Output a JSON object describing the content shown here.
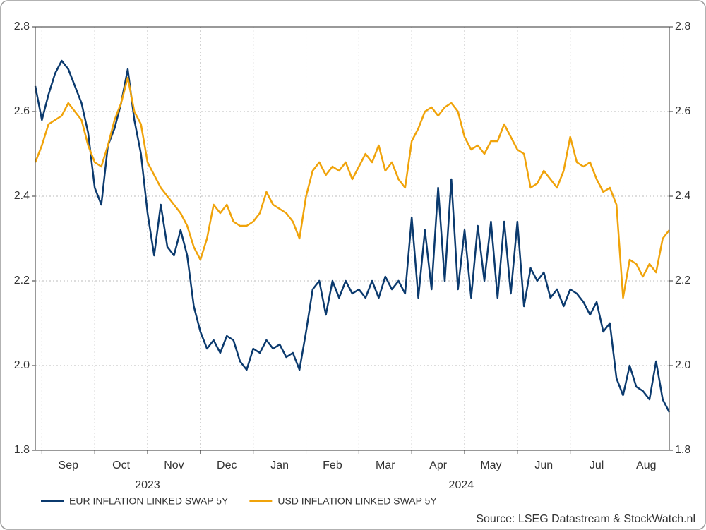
{
  "chart_data": {
    "type": "line",
    "categories": [
      null,
      "Sep",
      null,
      null,
      null,
      null,
      null,
      null,
      null,
      "Oct",
      null,
      null,
      null,
      null,
      null,
      null,
      null,
      "Nov",
      null,
      null,
      null,
      null,
      null,
      null,
      null,
      "Dec",
      null,
      null,
      null,
      null,
      null,
      null,
      null,
      "Jan",
      null,
      null,
      null,
      null,
      null,
      null,
      null,
      "Feb",
      null,
      null,
      null,
      null,
      null,
      null,
      null,
      "Mar",
      null,
      null,
      null,
      null,
      null,
      null,
      null,
      "Apr",
      null,
      null,
      null,
      null,
      null,
      null,
      null,
      "May",
      null,
      null,
      null,
      null,
      null,
      null,
      null,
      "Jun",
      null,
      null,
      null,
      null,
      null,
      null,
      null,
      "Jul",
      null,
      null,
      null,
      null,
      null,
      null,
      null,
      "Aug",
      null,
      null,
      null,
      null,
      null,
      null,
      null
    ],
    "year_categories": [
      null,
      "2023",
      null,
      null,
      null,
      null,
      null,
      null,
      null,
      null,
      null,
      null,
      null,
      null,
      null,
      null,
      null,
      null,
      null,
      null,
      null,
      null,
      null,
      null,
      null,
      null,
      null,
      null,
      null,
      null,
      null,
      null,
      null,
      "2024",
      null,
      null,
      null,
      null,
      null,
      null,
      null,
      null,
      null,
      null,
      null,
      null,
      null,
      null,
      null,
      null,
      null,
      null,
      null,
      null,
      null,
      null,
      null,
      null,
      null,
      null,
      null,
      null,
      null,
      null,
      null,
      null,
      null,
      null,
      null,
      null,
      null,
      null,
      null,
      null,
      null,
      null,
      null,
      null,
      null,
      null,
      null,
      null,
      null,
      null,
      null,
      null,
      null,
      null,
      null,
      null,
      null,
      null,
      null,
      null,
      null,
      null,
      null
    ],
    "series": [
      {
        "name": "EUR INFLATION LINKED SWAP 5Y",
        "color": "#0b3a6e",
        "values": [
          2.66,
          2.58,
          2.64,
          2.69,
          2.72,
          2.7,
          2.66,
          2.62,
          2.55,
          2.42,
          2.38,
          2.52,
          2.56,
          2.62,
          2.7,
          2.58,
          2.5,
          2.36,
          2.26,
          2.38,
          2.28,
          2.26,
          2.32,
          2.26,
          2.14,
          2.08,
          2.04,
          2.06,
          2.03,
          2.07,
          2.06,
          2.01,
          1.99,
          2.04,
          2.03,
          2.06,
          2.04,
          2.05,
          2.02,
          2.03,
          1.99,
          2.08,
          2.18,
          2.2,
          2.12,
          2.2,
          2.16,
          2.2,
          2.17,
          2.18,
          2.16,
          2.2,
          2.16,
          2.21,
          2.18,
          2.2,
          2.17,
          2.35,
          2.16,
          2.32,
          2.18,
          2.42,
          2.2,
          2.44,
          2.18,
          2.32,
          2.16,
          2.33,
          2.2,
          2.34,
          2.16,
          2.34,
          2.17,
          2.34,
          2.14,
          2.23,
          2.2,
          2.22,
          2.16,
          2.18,
          2.14,
          2.18,
          2.17,
          2.15,
          2.12,
          2.15,
          2.08,
          2.1,
          1.97,
          1.93,
          2.0,
          1.95,
          1.94,
          1.92,
          2.01,
          1.92,
          1.89
        ]
      },
      {
        "name": "USD INFLATION LINKED SWAP 5Y",
        "color": "#f0a30a",
        "values": [
          2.48,
          2.52,
          2.57,
          2.58,
          2.59,
          2.62,
          2.6,
          2.58,
          2.52,
          2.48,
          2.47,
          2.52,
          2.58,
          2.62,
          2.68,
          2.6,
          2.57,
          2.48,
          2.45,
          2.42,
          2.4,
          2.38,
          2.36,
          2.33,
          2.28,
          2.25,
          2.3,
          2.38,
          2.36,
          2.38,
          2.34,
          2.33,
          2.33,
          2.34,
          2.36,
          2.41,
          2.38,
          2.37,
          2.36,
          2.34,
          2.3,
          2.4,
          2.46,
          2.48,
          2.45,
          2.47,
          2.46,
          2.48,
          2.44,
          2.47,
          2.5,
          2.48,
          2.52,
          2.46,
          2.48,
          2.44,
          2.42,
          2.53,
          2.56,
          2.6,
          2.61,
          2.59,
          2.61,
          2.62,
          2.6,
          2.54,
          2.51,
          2.52,
          2.5,
          2.53,
          2.53,
          2.57,
          2.54,
          2.51,
          2.5,
          2.42,
          2.43,
          2.46,
          2.44,
          2.42,
          2.46,
          2.54,
          2.48,
          2.47,
          2.48,
          2.44,
          2.41,
          2.42,
          2.38,
          2.16,
          2.25,
          2.24,
          2.21,
          2.24,
          2.22,
          2.3,
          2.32
        ]
      }
    ],
    "ylim": [
      1.8,
      2.8
    ],
    "yticks": [
      1.8,
      {
        "value": 2,
        "label": "2.0"
      },
      2.2,
      2.4,
      2.6,
      2.8
    ],
    "grid": true,
    "source": "Source: LSEG Datastream & StockWatch.nl"
  }
}
